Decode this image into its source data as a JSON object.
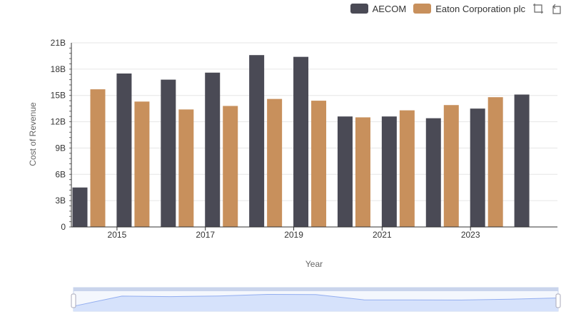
{
  "toolbar": {
    "zoom_icon": "zoom-select-icon",
    "restore_icon": "restore-icon"
  },
  "colors": {
    "aecom": "#4a4a55",
    "eaton": "#c8905c",
    "grid": "#e6e6e6",
    "axis": "#333333",
    "slider_fill": "#d6e2fb",
    "slider_line": "#93aef0"
  },
  "chart_data": {
    "type": "bar",
    "xlabel": "Year",
    "ylabel": "Cost of Revenue",
    "ylim": [
      0,
      21
    ],
    "yticks": [
      {
        "value": 0,
        "label": "0"
      },
      {
        "value": 3,
        "label": "3B"
      },
      {
        "value": 6,
        "label": "6B"
      },
      {
        "value": 9,
        "label": "9B"
      },
      {
        "value": 12,
        "label": "12B"
      },
      {
        "value": 15,
        "label": "15B"
      },
      {
        "value": 18,
        "label": "18B"
      },
      {
        "value": 21,
        "label": "21B"
      }
    ],
    "xtick_labels": [
      "2015",
      "2017",
      "2019",
      "2021",
      "2023"
    ],
    "categories": [
      "2014",
      "2015",
      "2016",
      "2017",
      "2018",
      "2019",
      "2020",
      "2021",
      "2022",
      "2023",
      "2024"
    ],
    "series": [
      {
        "name": "AECOM",
        "values": [
          4.5,
          17.5,
          16.8,
          17.6,
          19.6,
          19.4,
          12.6,
          12.6,
          12.4,
          13.5,
          15.1
        ]
      },
      {
        "name": "Eaton Corporation plc",
        "values": [
          15.7,
          14.3,
          13.4,
          13.8,
          14.6,
          14.4,
          12.5,
          13.3,
          13.9,
          14.8,
          null
        ]
      }
    ],
    "legend_position": "top-right",
    "grid": true
  }
}
